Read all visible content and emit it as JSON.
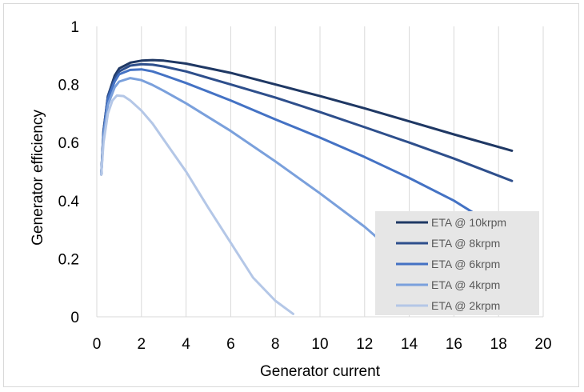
{
  "chart_data": {
    "type": "line",
    "title": "",
    "xlabel": "Generator current",
    "ylabel": "Generator efficiency",
    "xlim": [
      0,
      20
    ],
    "ylim": [
      0,
      1
    ],
    "x_ticks": [
      "0",
      "2",
      "4",
      "6",
      "8",
      "10",
      "12",
      "14",
      "16",
      "18",
      "20"
    ],
    "y_ticks": [
      "0",
      "0.2",
      "0.4",
      "0.6",
      "0.8",
      "1"
    ],
    "grid": "vertical",
    "legend_position": "bottom-right",
    "series": [
      {
        "name": "ETA @ 10krpm",
        "color": "#1f3864",
        "x": [
          0.2,
          0.3,
          0.5,
          0.8,
          1.0,
          1.5,
          2.0,
          2.5,
          3.0,
          4.0,
          6.0,
          8.0,
          10.0,
          12.0,
          14.0,
          16.0,
          18.6
        ],
        "y": [
          0.49,
          0.64,
          0.76,
          0.83,
          0.855,
          0.875,
          0.882,
          0.884,
          0.882,
          0.872,
          0.84,
          0.8,
          0.76,
          0.718,
          0.673,
          0.628,
          0.572
        ]
      },
      {
        "name": "ETA @ 8krpm",
        "color": "#2e4f8c",
        "x": [
          0.2,
          0.3,
          0.5,
          0.8,
          1.0,
          1.5,
          2.0,
          2.5,
          3.0,
          4.0,
          6.0,
          8.0,
          10.0,
          12.0,
          14.0,
          16.0,
          18.6
        ],
        "y": [
          0.49,
          0.64,
          0.76,
          0.82,
          0.845,
          0.865,
          0.87,
          0.868,
          0.862,
          0.845,
          0.8,
          0.755,
          0.705,
          0.653,
          0.6,
          0.545,
          0.468
        ]
      },
      {
        "name": "ETA @ 6krpm",
        "color": "#4472c4",
        "x": [
          0.2,
          0.3,
          0.5,
          0.8,
          1.0,
          1.5,
          2.0,
          2.5,
          3.0,
          4.0,
          6.0,
          8.0,
          10.0,
          12.0,
          14.0,
          16.0,
          17.0
        ],
        "y": [
          0.49,
          0.63,
          0.75,
          0.81,
          0.835,
          0.85,
          0.852,
          0.845,
          0.832,
          0.805,
          0.745,
          0.68,
          0.617,
          0.55,
          0.478,
          0.4,
          0.352
        ]
      },
      {
        "name": "ETA @ 4krpm",
        "color": "#7aa0dc",
        "x": [
          0.2,
          0.3,
          0.5,
          0.8,
          1.0,
          1.5,
          2.0,
          2.5,
          3.0,
          4.0,
          6.0,
          8.0,
          10.0,
          12.0,
          12.6
        ],
        "y": [
          0.49,
          0.62,
          0.73,
          0.79,
          0.81,
          0.822,
          0.815,
          0.798,
          0.778,
          0.735,
          0.64,
          0.535,
          0.425,
          0.31,
          0.27
        ]
      },
      {
        "name": "ETA @ 2krpm",
        "color": "#b4c7e7",
        "x": [
          0.2,
          0.3,
          0.5,
          0.7,
          0.9,
          1.2,
          1.5,
          2.0,
          2.5,
          3.0,
          4.0,
          5.0,
          6.0,
          7.0,
          8.0,
          8.8
        ],
        "y": [
          0.49,
          0.6,
          0.7,
          0.745,
          0.762,
          0.76,
          0.745,
          0.71,
          0.665,
          0.61,
          0.5,
          0.375,
          0.255,
          0.135,
          0.055,
          0.01
        ]
      }
    ]
  }
}
